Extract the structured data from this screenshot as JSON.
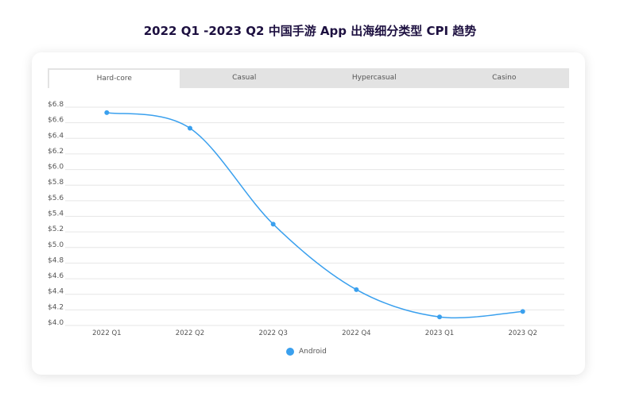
{
  "chart_data": {
    "type": "line",
    "title": "2022 Q1 -2023 Q2 中国手游 App 出海细分类型 CPI 趋势",
    "tabs": [
      "Hard-core",
      "Casual",
      "Hypercasual",
      "Casino"
    ],
    "active_tab": "Hard-core",
    "categories": [
      "2022 Q1",
      "2022 Q2",
      "2022 Q3",
      "2022 Q4",
      "2023 Q1",
      "2023 Q2"
    ],
    "series": [
      {
        "name": "Android",
        "values": [
          6.73,
          6.53,
          5.3,
          4.46,
          4.11,
          4.18
        ],
        "color": "#3aa0ee"
      }
    ],
    "yticks": [
      "$4.0",
      "$4.2",
      "$4.4",
      "$4.6",
      "$4.8",
      "$5.0",
      "$5.2",
      "$5.4",
      "$5.6",
      "$5.8",
      "$6.0",
      "$6.2",
      "$6.4",
      "$6.6",
      "$6.8"
    ],
    "ylim": [
      4.0,
      6.8
    ],
    "grid": true,
    "legend": "bottom",
    "xlabel": "",
    "ylabel": ""
  }
}
